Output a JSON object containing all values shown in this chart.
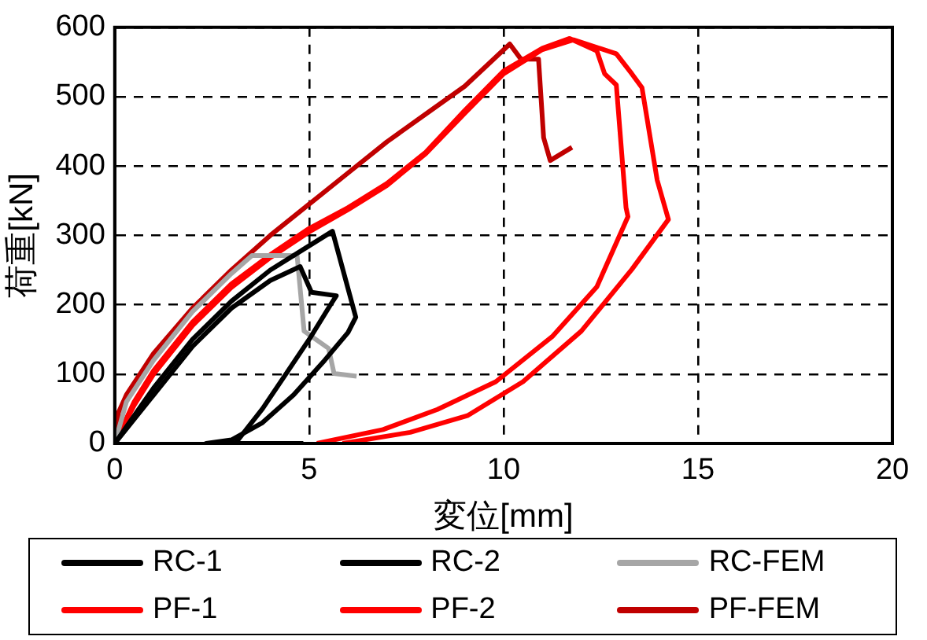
{
  "chart_data": {
    "type": "line",
    "xlabel": "変位[mm]",
    "ylabel": "荷重[kN]",
    "xlim": [
      0,
      20
    ],
    "ylim": [
      0,
      600
    ],
    "xticks": [
      0,
      5,
      10,
      15,
      20
    ],
    "yticks": [
      0,
      100,
      200,
      300,
      400,
      500,
      600
    ],
    "grid": true,
    "legend": "bottom",
    "marker": "none",
    "line_style": "solid",
    "series": [
      {
        "name": "RC-1",
        "color": "#000000",
        "x": [
          0,
          0.5,
          1,
          2,
          3,
          4,
          5,
          5.6,
          6.2,
          6,
          5.4,
          4.6,
          3.8,
          3,
          2.35,
          4.85
        ],
        "values": [
          0,
          40,
          80,
          150,
          205,
          250,
          285,
          306,
          182,
          160,
          120,
          70,
          30,
          5,
          0,
          0
        ]
      },
      {
        "name": "RC-2",
        "color": "#000000",
        "x": [
          0,
          1,
          2,
          3,
          4,
          4.77,
          5.06,
          5.7,
          5.55,
          5,
          4.4,
          3.8,
          3.1
        ],
        "values": [
          0,
          70,
          140,
          195,
          235,
          255,
          218,
          213,
          200,
          150,
          100,
          50,
          0
        ]
      },
      {
        "name": "RC-FEM",
        "color": "#a6a6a6",
        "x": [
          0,
          0.3,
          1,
          2,
          3,
          3.53,
          4.69,
          4.87,
          5.5,
          5.64,
          6.22
        ],
        "values": [
          0,
          60,
          120,
          190,
          245,
          271,
          271,
          162,
          137,
          101,
          97
        ]
      },
      {
        "name": "PF-1",
        "color": "#ff0000",
        "x": [
          0,
          0.5,
          1,
          2,
          3,
          4,
          5,
          6,
          7,
          8,
          9,
          10,
          11,
          11.7,
          12.4,
          12.6,
          12.9,
          13.15,
          13.2,
          12.4,
          11.25,
          9.8,
          8.3,
          6.9,
          5.2
        ],
        "values": [
          0,
          60,
          105,
          175,
          230,
          272,
          310,
          340,
          375,
          420,
          480,
          537,
          570,
          584,
          566,
          533,
          517,
          340,
          327,
          226,
          154,
          89,
          49,
          20,
          0
        ]
      },
      {
        "name": "PF-2",
        "color": "#ff0000",
        "x": [
          0,
          0.5,
          1,
          2,
          3,
          4,
          5,
          6,
          7,
          8,
          9,
          10,
          11,
          11.8,
          12.9,
          13.3,
          13.56,
          13.95,
          14.24,
          13.3,
          12,
          10.5,
          9.07,
          7.6,
          5.86
        ],
        "values": [
          0,
          55,
          100,
          170,
          225,
          268,
          305,
          337,
          372,
          418,
          476,
          533,
          568,
          582,
          562,
          533,
          513,
          380,
          323,
          251,
          162,
          89,
          40,
          16,
          0
        ]
      },
      {
        "name": "PF-FEM",
        "color": "#c00000",
        "x": [
          0,
          0.1,
          0.3,
          1,
          2,
          3,
          4,
          5,
          6,
          7,
          8,
          9,
          10.16,
          10.45,
          10.9,
          11.03,
          11.2,
          11.76
        ],
        "values": [
          0,
          45,
          70,
          130,
          195,
          250,
          300,
          345,
          390,
          435,
          475,
          515,
          576,
          554,
          554,
          441,
          408,
          427
        ]
      }
    ]
  }
}
